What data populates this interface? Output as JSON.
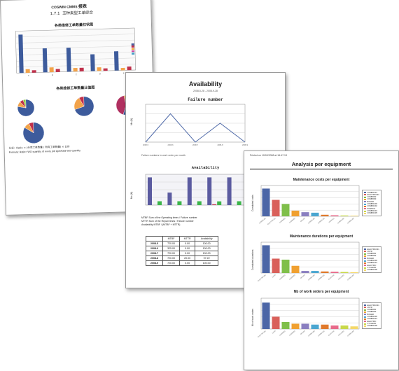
{
  "sheet1": {
    "brand": "COSWIN CMMS",
    "brand_suffix": "报表",
    "section_number": "1.7.1",
    "section_title": "五种类型工单综合",
    "chart1_title": "各类维修工单数量柱状图",
    "chart2_title": "各类维修工单数量比值图",
    "footer_line1": "公式：Ratio = (分项工单数量 / 所有工单数量) × 100",
    "footer_line2": "Formula: Ratio= WO quantity of every job type/total WO quantity",
    "legend_colors": [
      "#4a5d9e",
      "#c0304b",
      "#f0a030",
      "#d03f9a",
      "#4aa0c8"
    ],
    "chart1": {
      "type": "bar",
      "categories": [
        "A",
        "B",
        "C",
        "D",
        "E"
      ],
      "series": [
        {
          "color": "#3d5b9c",
          "values": [
            64,
            40,
            40,
            28,
            32
          ]
        },
        {
          "color": "#f2a34a",
          "values": [
            6,
            8,
            6,
            6,
            4
          ]
        },
        {
          "color": "#c0304b",
          "values": [
            4,
            5,
            6,
            4,
            6
          ]
        }
      ],
      "ylim": [
        0,
        70
      ]
    }
  },
  "sheet2": {
    "title": "Availability",
    "chart1_title": "Failure number",
    "chart1_ylabel": "Nb (N)",
    "chart1_caption": "Failure numbers in work order per month",
    "chart2_title": "Availability",
    "chart2_ylabel": "Nb (N)",
    "notes": [
      "MTBF      Sum of the Operating times / Failure number",
      "MTTR      Sum of the Repair times / Failure number",
      "Availability   MTBF / (MTBF + MTTR)"
    ],
    "table_headers": [
      "",
      "MTBF",
      "MTTR",
      "Availability"
    ],
    "table_rows": [
      [
        "2008-5",
        "720.00",
        "0.00",
        "100.00"
      ],
      [
        "2008-6",
        "325.00",
        "0.00",
        "100.00"
      ],
      [
        "2008-7",
        "720.00",
        "0.00",
        "100.00"
      ],
      [
        "2008-8",
        "720.00",
        "20.00",
        "97.22"
      ],
      [
        "2008-9",
        "720.00",
        "0.00",
        "100.00"
      ]
    ],
    "line_chart": {
      "type": "line",
      "x": [
        1,
        2,
        3,
        4,
        5
      ],
      "values": [
        0,
        3,
        0,
        2,
        0
      ],
      "ylim": [
        0,
        4
      ]
    },
    "availability_chart": {
      "type": "bar",
      "categories": [
        "2008-5",
        "2008-6",
        "2008-7",
        "2008-8",
        "2008-9"
      ],
      "series": [
        {
          "color": "#5b5ba0",
          "values": [
            720,
            325,
            720,
            720,
            720
          ]
        },
        {
          "color": "#c0304b",
          "values": [
            0,
            0,
            0,
            20,
            0
          ]
        },
        {
          "color": "#3cb54a",
          "values": [
            100,
            100,
            100,
            97.22,
            100
          ]
        }
      ],
      "ylim": [
        0,
        800
      ]
    }
  },
  "sheet3": {
    "printed": "Printed on 10/02/2008 at 16:47:13",
    "title": "Analysis per equipment",
    "section1_title": "Maintenance costs per equipment",
    "section1_ylabel": "Cumulated costs",
    "section2_title": "Maintenance durations per equipment",
    "section2_ylabel": "Cumulated durations",
    "section3_title": "Nb of work orders per equipment",
    "section3_ylabel": "Nb of work orders",
    "palette": [
      "#4c66a6",
      "#d9605a",
      "#7fbf4a",
      "#f0a030",
      "#8a7fc0",
      "#4aa6d0",
      "#e07a2c",
      "#e86a8a",
      "#c8d84a",
      "#f4d86a"
    ],
    "legend1": [
      "COMBI1301",
      "ELECTRIC301",
      "COMBI002",
      "COMBI003",
      "BOILER",
      "COMBI1300",
      "COMBI1302",
      "PUMP101",
      "COMBI1304",
      "COMBI1305"
    ],
    "legend2": [
      "ELECTRIC301",
      "CNTR",
      "COMBI001",
      "COMBI002",
      "BOILER",
      "COMBI1300",
      "COMBI1301",
      "ELECTRIC",
      "CYCLE001",
      "COMBI1308"
    ],
    "legend3": [
      "ELECTRIC301",
      "CNTR",
      "COMBI001",
      "COMBI002",
      "BOILER",
      "COMBI1300",
      "COMBI1301",
      "ELECTRIC",
      "CYCLE001",
      "COMBI1308"
    ],
    "chart_costs": {
      "type": "bar",
      "values": [
        270,
        160,
        120,
        55,
        40,
        35,
        15,
        10,
        8,
        6
      ],
      "ylim": [
        0,
        300
      ]
    },
    "chart_durations": {
      "type": "bar",
      "values": [
        270,
        140,
        130,
        70,
        20,
        20,
        15,
        12,
        10,
        8
      ],
      "ylim": [
        0,
        300
      ]
    },
    "chart_workorders": {
      "type": "bar",
      "values": [
        30,
        14,
        8,
        6,
        6,
        5,
        5,
        4,
        4,
        3
      ],
      "ylim": [
        0,
        35
      ]
    }
  }
}
